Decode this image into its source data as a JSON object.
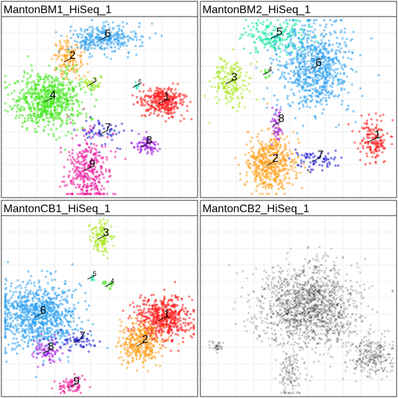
{
  "chart_data": [
    {
      "type": "scatter",
      "title": "MantonBM1_HiSeq_1",
      "clusters": [
        {
          "label": "1",
          "color": "#ff1a1a",
          "center": [
            0.82,
            0.47
          ],
          "spread": [
            0.055,
            0.04
          ],
          "n": 320
        },
        {
          "label": "2",
          "color": "#ff9f1a",
          "center": [
            0.34,
            0.24
          ],
          "spread": [
            0.04,
            0.05
          ],
          "n": 150
        },
        {
          "label": "3",
          "color": "#a5e81a",
          "center": [
            0.46,
            0.37
          ],
          "spread": [
            0.02,
            0.02
          ],
          "n": 35
        },
        {
          "label": "4",
          "color": "#3fe81a",
          "center": [
            0.24,
            0.46
          ],
          "spread": [
            0.09,
            0.08
          ],
          "n": 700
        },
        {
          "label": "5",
          "color": "#1ae8b8",
          "center": [
            0.69,
            0.38
          ],
          "spread": [
            0.005,
            0.008
          ],
          "n": 8
        },
        {
          "label": "6",
          "color": "#2ea0f0",
          "center": [
            0.52,
            0.12
          ],
          "spread": [
            0.09,
            0.04
          ],
          "n": 300
        },
        {
          "label": "7",
          "color": "#1a1ad8",
          "center": [
            0.52,
            0.64
          ],
          "spread": [
            0.06,
            0.04
          ],
          "n": 60
        },
        {
          "label": "8",
          "color": "#a01ae0",
          "center": [
            0.73,
            0.71
          ],
          "spread": [
            0.035,
            0.025
          ],
          "n": 80
        },
        {
          "label": "9",
          "color": "#ef1a9f",
          "center": [
            0.44,
            0.84
          ],
          "spread": [
            0.055,
            0.1
          ],
          "n": 350
        }
      ]
    },
    {
      "type": "scatter",
      "title": "MantonBM2_HiSeq_1",
      "clusters": [
        {
          "label": "1",
          "color": "#ff1a1a",
          "center": [
            0.88,
            0.68
          ],
          "spread": [
            0.04,
            0.06
          ],
          "n": 150
        },
        {
          "label": "2",
          "color": "#ff9f1a",
          "center": [
            0.36,
            0.81
          ],
          "spread": [
            0.06,
            0.08
          ],
          "n": 500
        },
        {
          "label": "3",
          "color": "#a5e81a",
          "center": [
            0.15,
            0.36
          ],
          "spread": [
            0.05,
            0.07
          ],
          "n": 180
        },
        {
          "label": "4",
          "color": "#3fe81a",
          "center": [
            0.34,
            0.31
          ],
          "spread": [
            0.008,
            0.012
          ],
          "n": 10
        },
        {
          "label": "5",
          "color": "#1ae8a8",
          "center": [
            0.38,
            0.11
          ],
          "spread": [
            0.08,
            0.05
          ],
          "n": 220
        },
        {
          "label": "6",
          "color": "#2ea0f0",
          "center": [
            0.58,
            0.28
          ],
          "spread": [
            0.09,
            0.12
          ],
          "n": 750
        },
        {
          "label": "7",
          "color": "#1a1ad8",
          "center": [
            0.59,
            0.79
          ],
          "spread": [
            0.06,
            0.03
          ],
          "n": 70
        },
        {
          "label": "8",
          "color": "#a01ae0",
          "center": [
            0.39,
            0.59
          ],
          "spread": [
            0.015,
            0.05
          ],
          "n": 45
        }
      ]
    },
    {
      "type": "scatter",
      "title": "MantonCB1_HiSeq_1",
      "clusters": [
        {
          "label": "1",
          "color": "#ff1a1a",
          "center": [
            0.82,
            0.57
          ],
          "spread": [
            0.07,
            0.06
          ],
          "n": 520
        },
        {
          "label": "2",
          "color": "#ff9f1a",
          "center": [
            0.71,
            0.71
          ],
          "spread": [
            0.055,
            0.06
          ],
          "n": 330
        },
        {
          "label": "3",
          "color": "#a5e81a",
          "center": [
            0.51,
            0.12
          ],
          "spread": [
            0.03,
            0.045
          ],
          "n": 120
        },
        {
          "label": "4",
          "color": "#3fe81a",
          "center": [
            0.55,
            0.38
          ],
          "spread": [
            0.015,
            0.01
          ],
          "n": 15
        },
        {
          "label": "5",
          "color": "#1ae8a8",
          "center": [
            0.46,
            0.34
          ],
          "spread": [
            0.005,
            0.012
          ],
          "n": 8
        },
        {
          "label": "6",
          "color": "#2ea0f0",
          "center": [
            0.19,
            0.55
          ],
          "spread": [
            0.1,
            0.09
          ],
          "n": 900
        },
        {
          "label": "7",
          "color": "#1a1ad8",
          "center": [
            0.39,
            0.69
          ],
          "spread": [
            0.04,
            0.03
          ],
          "n": 60
        },
        {
          "label": "8",
          "color": "#a01ae0",
          "center": [
            0.23,
            0.75
          ],
          "spread": [
            0.035,
            0.035
          ],
          "n": 80
        },
        {
          "label": "9",
          "color": "#ef1a9f",
          "center": [
            0.36,
            0.94
          ],
          "spread": [
            0.04,
            0.025
          ],
          "n": 70
        }
      ]
    },
    {
      "type": "scatter",
      "title": "MantonCB2_HiSeq_1",
      "marker": "x",
      "color": "#000000",
      "clusters": [
        {
          "label": "",
          "color": "#000000",
          "center": [
            0.56,
            0.5
          ],
          "spread": [
            0.13,
            0.12
          ],
          "n": 1500
        },
        {
          "label": "",
          "color": "#000000",
          "center": [
            0.87,
            0.78
          ],
          "spread": [
            0.06,
            0.06
          ],
          "n": 260
        },
        {
          "label": "",
          "color": "#000000",
          "center": [
            0.46,
            0.87
          ],
          "spread": [
            0.03,
            0.07
          ],
          "n": 120
        },
        {
          "label": "",
          "color": "#000000",
          "center": [
            0.08,
            0.72
          ],
          "spread": [
            0.02,
            0.015
          ],
          "n": 35
        }
      ]
    }
  ]
}
